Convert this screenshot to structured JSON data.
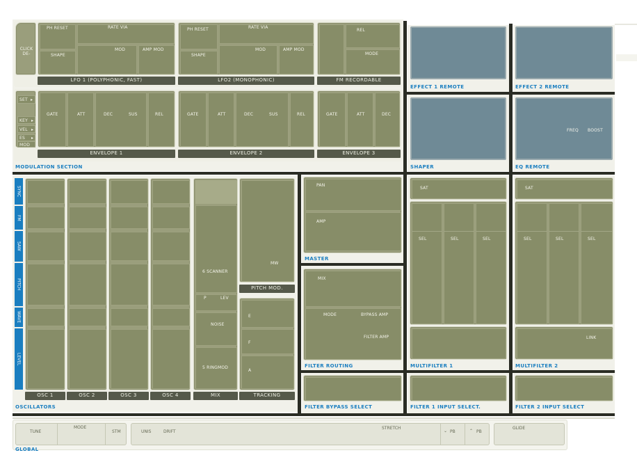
{
  "modulation": {
    "title": "MODULATION SECTION",
    "click_label": "CLICK DE-",
    "lfo1": {
      "title": "LFO 1 (POLYPHONIC, FAST)",
      "ph_reset": "PH RESET",
      "rate_via": "RATE VIA",
      "shape": "SHAPE",
      "mod": "MOD",
      "amp_mod": "AMP MOD"
    },
    "lfo2": {
      "title": "LFO2 (MONOPHONIC)",
      "ph_reset": "PH RESET",
      "rate_via": "RATE VIA",
      "shape": "SHAPE",
      "mod": "MOD",
      "amp_mod": "AMP MOD"
    },
    "fm": {
      "title": "FM RECORDABLE",
      "rel": "REL",
      "mode": "MODE"
    },
    "mod_buttons": {
      "set": "SET",
      "key": "KEY",
      "vel": "VEL",
      "es": "ES",
      "mod": "MOD"
    },
    "env1": {
      "title": "ENVELOPE 1",
      "gate": "GATE",
      "att": "ATT",
      "dec": "DEC",
      "sus": "SUS",
      "rel": "REL"
    },
    "env2": {
      "title": "ENVELOPE 2",
      "gate": "GATE",
      "att": "ATT",
      "dec": "DEC",
      "sus": "SUS",
      "rel": "REL"
    },
    "env3": {
      "title": "ENVELOPE 3",
      "gate": "GATE",
      "att": "ATT",
      "dec": "DEC"
    }
  },
  "effects": {
    "effect1": "EFFECT 1 REMOTE",
    "effect2": "EFFECT 2 REMOTE",
    "shaper": "SHAPER",
    "eq": {
      "title": "EQ REMOTE",
      "freq": "FREQ",
      "boost": "BOOST"
    }
  },
  "oscillators": {
    "title": "OSCILLATORS",
    "rows": [
      "SYNC",
      "FM",
      "SAW",
      "PITCH",
      "WAVE",
      "LEVEL"
    ],
    "osc_names": [
      "OSC 1",
      "OSC 2",
      "OSC 3",
      "OSC 4"
    ],
    "mix": {
      "title": "MIX",
      "scanner": "6 SCANNER",
      "p": "P",
      "lev": "LEV",
      "noise": "NOISE",
      "ringmod": "5 RINGMOD"
    },
    "pitch_mod": {
      "title": "PITCH MOD.",
      "mw": "MW"
    },
    "tracking": {
      "title": "TRACKING",
      "e": "E",
      "f": "F",
      "a": "A"
    }
  },
  "master": {
    "title": "MASTER",
    "pan": "PAN",
    "amp": "AMP"
  },
  "filter_routing": {
    "title": "FILTER ROUTING",
    "mix": "MIX",
    "mode": "MODE",
    "bypass_amp": "BYPASS AMP",
    "filter_amp": "FILTER AMP"
  },
  "multifilter1": {
    "title": "MULTIFILTER 1",
    "sat": "SAT",
    "sel": "SEL"
  },
  "multifilter2": {
    "title": "MULTIFILTER 2",
    "sat": "SAT",
    "sel": "SEL",
    "link": "LINK"
  },
  "filter_bypass_select": "FILTER BYPASS SELECT",
  "filter1_input_select": "FILTER 1 INPUT SELECT.",
  "filter2_input_select": "FILTER 2 INPUT SELECT",
  "global": {
    "title": "GLOBAL",
    "tune": "TUNE",
    "mode": "MODE",
    "stm": "STM",
    "unis": "UNIS",
    "drift": "DRIFT",
    "stretch": "STRETCH",
    "pb_down": "PB",
    "pb_up": "PB",
    "glide": "GLIDE"
  }
}
